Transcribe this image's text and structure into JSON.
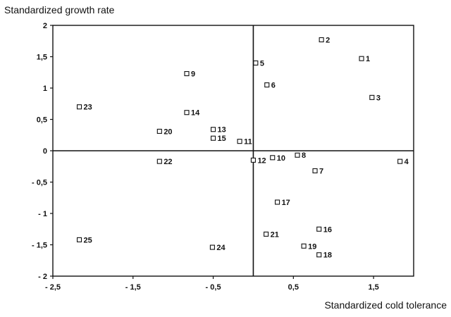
{
  "chart_data": {
    "type": "scatter",
    "ylabel": "Standardized growth rate",
    "xlabel": "Standardized cold tolerance",
    "xlim": [
      -2.5,
      2.0
    ],
    "ylim": [
      -2,
      2
    ],
    "x_ticks": [
      {
        "value": -2.5,
        "label": "- 2,5"
      },
      {
        "value": -1.5,
        "label": "- 1,5"
      },
      {
        "value": -0.5,
        "label": "- 0,5"
      },
      {
        "value": 0.5,
        "label": "0,5"
      },
      {
        "value": 1.5,
        "label": "1,5"
      }
    ],
    "y_ticks": [
      {
        "value": 2,
        "label": "2"
      },
      {
        "value": 1.5,
        "label": "1,5"
      },
      {
        "value": 1,
        "label": "1"
      },
      {
        "value": 0.5,
        "label": "0,5"
      },
      {
        "value": 0,
        "label": "0"
      },
      {
        "value": -0.5,
        "label": "- 0,5"
      },
      {
        "value": -1,
        "label": "- 1"
      },
      {
        "value": -1.5,
        "label": "- 1,5"
      },
      {
        "value": -2,
        "label": "- 2"
      }
    ],
    "grid": false,
    "reference_lines": {
      "x": 0,
      "y": 0
    },
    "points": [
      {
        "label": "1",
        "x": 1.35,
        "y": 1.47
      },
      {
        "label": "2",
        "x": 0.85,
        "y": 1.77
      },
      {
        "label": "3",
        "x": 1.48,
        "y": 0.85
      },
      {
        "label": "4",
        "x": 1.83,
        "y": -0.17
      },
      {
        "label": "5",
        "x": 0.03,
        "y": 1.4
      },
      {
        "label": "6",
        "x": 0.17,
        "y": 1.05
      },
      {
        "label": "7",
        "x": 0.77,
        "y": -0.32
      },
      {
        "label": "8",
        "x": 0.55,
        "y": -0.07
      },
      {
        "label": "9",
        "x": -0.83,
        "y": 1.23
      },
      {
        "label": "10",
        "x": 0.24,
        "y": -0.11
      },
      {
        "label": "11",
        "x": -0.17,
        "y": 0.15
      },
      {
        "label": "12",
        "x": 0.0,
        "y": -0.15
      },
      {
        "label": "13",
        "x": -0.5,
        "y": 0.34
      },
      {
        "label": "14",
        "x": -0.83,
        "y": 0.61
      },
      {
        "label": "15",
        "x": -0.5,
        "y": 0.2
      },
      {
        "label": "16",
        "x": 0.82,
        "y": -1.25
      },
      {
        "label": "17",
        "x": 0.3,
        "y": -0.82
      },
      {
        "label": "18",
        "x": 0.82,
        "y": -1.66
      },
      {
        "label": "19",
        "x": 0.63,
        "y": -1.52
      },
      {
        "label": "20",
        "x": -1.17,
        "y": 0.31
      },
      {
        "label": "21",
        "x": 0.16,
        "y": -1.33
      },
      {
        "label": "22",
        "x": -1.17,
        "y": -0.17
      },
      {
        "label": "23",
        "x": -2.17,
        "y": 0.7
      },
      {
        "label": "24",
        "x": -0.51,
        "y": -1.54
      },
      {
        "label": "25",
        "x": -2.17,
        "y": -1.42
      }
    ]
  }
}
